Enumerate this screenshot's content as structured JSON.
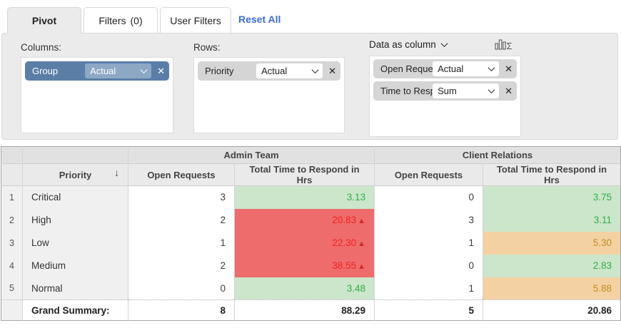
{
  "tabs": {
    "pivot": "Pivot",
    "filters_label": "Filters",
    "filters_count": "(0)",
    "user_filters": "User Filters",
    "reset_all": "Reset All"
  },
  "config": {
    "columns_label": "Columns:",
    "rows_label": "Rows:",
    "data_as_column_label": "Data as column",
    "columns_chips": [
      {
        "field": "Group",
        "agg": "Actual"
      }
    ],
    "rows_chips": [
      {
        "field": "Priority",
        "agg": "Actual"
      }
    ],
    "data_chips": [
      {
        "field": "Open Reque...",
        "agg": "Actual"
      },
      {
        "field": "Time to Resp...",
        "agg": "Sum"
      }
    ],
    "remove_icon": "✕"
  },
  "colors": {
    "link_blue": "#3a6ce0",
    "chip_blue": "#5b7ea7",
    "green_bg": "#cbe6cb",
    "green_text": "#35ad47",
    "red_bg": "#ee6c6c",
    "red_text": "#f62222",
    "orange_bg": "#f4d1a2",
    "orange_text": "#c08d1d"
  },
  "table": {
    "group_headers": [
      "Admin Team",
      "Client Relations"
    ],
    "priority_header": "Priority",
    "sort_icon": "↓",
    "up_triangle": "▲",
    "col_headers": [
      "Open Requests",
      "Total Time to Respond in Hrs",
      "Open Requests",
      "Total Time to Respond in Hrs"
    ],
    "rows": [
      {
        "num": "1",
        "priority": "Critical",
        "cells": [
          {
            "v": "3",
            "s": "plain"
          },
          {
            "v": "3.13",
            "s": "green"
          },
          {
            "v": "0",
            "s": "plain"
          },
          {
            "v": "3.75",
            "s": "green"
          }
        ]
      },
      {
        "num": "2",
        "priority": "High",
        "cells": [
          {
            "v": "2",
            "s": "plain"
          },
          {
            "v": "20.83",
            "s": "red",
            "alert": true
          },
          {
            "v": "3",
            "s": "plain"
          },
          {
            "v": "3.11",
            "s": "green"
          }
        ]
      },
      {
        "num": "3",
        "priority": "Low",
        "cells": [
          {
            "v": "1",
            "s": "plain"
          },
          {
            "v": "22.30",
            "s": "red",
            "alert": true
          },
          {
            "v": "1",
            "s": "plain"
          },
          {
            "v": "5.30",
            "s": "orange"
          }
        ]
      },
      {
        "num": "4",
        "priority": "Medium",
        "cells": [
          {
            "v": "2",
            "s": "plain"
          },
          {
            "v": "38.55",
            "s": "red",
            "alert": true
          },
          {
            "v": "0",
            "s": "plain"
          },
          {
            "v": "2.83",
            "s": "green"
          }
        ]
      },
      {
        "num": "5",
        "priority": "Normal",
        "cells": [
          {
            "v": "0",
            "s": "plain"
          },
          {
            "v": "3.48",
            "s": "green"
          },
          {
            "v": "1",
            "s": "plain"
          },
          {
            "v": "5.88",
            "s": "orange"
          }
        ]
      }
    ],
    "summary": {
      "label": "Grand Summary:",
      "values": [
        "8",
        "88.29",
        "5",
        "20.86"
      ]
    }
  }
}
